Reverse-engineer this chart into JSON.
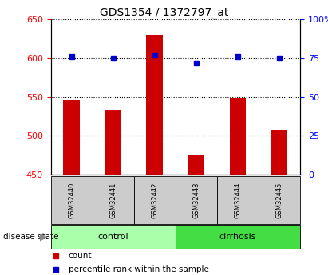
{
  "title": "GDS1354 / 1372797_at",
  "samples": [
    "GSM32440",
    "GSM32441",
    "GSM32442",
    "GSM32443",
    "GSM32444",
    "GSM32445"
  ],
  "counts": [
    546,
    533,
    630,
    475,
    549,
    508
  ],
  "percentiles": [
    76,
    75,
    77,
    72,
    76,
    75
  ],
  "ylim_left": [
    450,
    650
  ],
  "ylim_right": [
    0,
    100
  ],
  "yticks_left": [
    450,
    500,
    550,
    600,
    650
  ],
  "yticks_right": [
    0,
    25,
    50,
    75,
    100
  ],
  "bar_color": "#cc0000",
  "dot_color": "#0000cc",
  "bar_bottom": 450,
  "groups": [
    {
      "label": "control",
      "indices": [
        0,
        1,
        2
      ],
      "color": "#aaffaa"
    },
    {
      "label": "cirrhosis",
      "indices": [
        3,
        4,
        5
      ],
      "color": "#44dd44"
    }
  ],
  "disease_state_label": "disease state",
  "legend_count_label": "count",
  "legend_percentile_label": "percentile rank within the sample",
  "sample_box_color": "#cccccc",
  "title_fontsize": 10,
  "tick_fontsize": 8,
  "bar_width": 0.4
}
